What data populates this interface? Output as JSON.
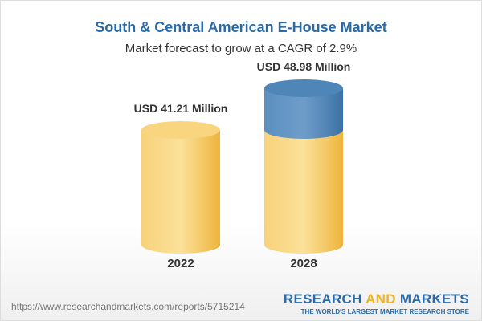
{
  "chart_data": {
    "type": "bar",
    "title": "South & Central American E-House Market",
    "subtitle": "Market forecast to grow at a CAGR of 2.9%",
    "categories": [
      "2022",
      "2028"
    ],
    "values": [
      41.21,
      48.98
    ],
    "data_labels": [
      "USD 41.21 Million",
      "USD 48.98 Million"
    ],
    "colors": {
      "base": "#f5c35a",
      "growth": "#4f86b8",
      "title": "#2a6aa6"
    }
  },
  "footer": {
    "url": "https://www.researchandmarkets.com/reports/5715214",
    "logo_part1": "RESEARCH ",
    "logo_part2": "AND",
    "logo_part3": " MARKETS",
    "tagline": "THE WORLD'S LARGEST MARKET RESEARCH STORE"
  }
}
